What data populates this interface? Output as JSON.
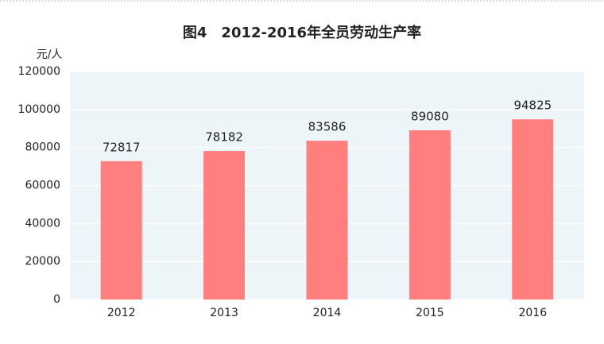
{
  "chart_data": {
    "type": "bar",
    "title": "图4　2012-2016年全员劳动生产率",
    "y_label": "元/人",
    "categories": [
      "2012",
      "2013",
      "2014",
      "2015",
      "2016"
    ],
    "values": [
      72817,
      78182,
      83586,
      89080,
      94825
    ],
    "color": "#ff7f7f",
    "ylim": [
      0,
      120000
    ],
    "yticks": [
      0,
      20000,
      40000,
      60000,
      80000,
      100000,
      120000
    ],
    "grid": true
  }
}
